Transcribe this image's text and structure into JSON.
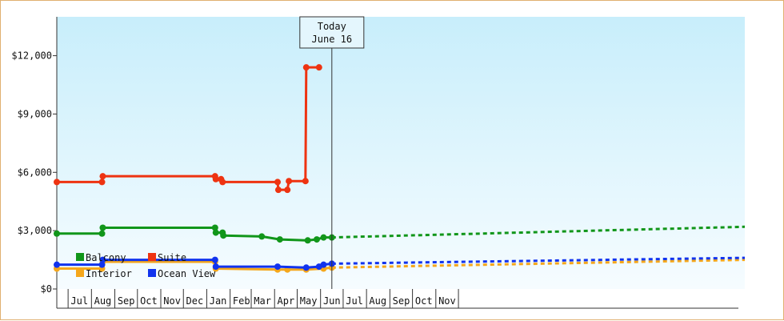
{
  "chart_data": {
    "type": "line",
    "title": "",
    "xlabel": "",
    "ylabel": "",
    "y_ticks": [
      0,
      3000,
      6000,
      9000,
      12000
    ],
    "y_tick_labels": [
      "$0",
      "$3,000",
      "$6,000",
      "$9,000",
      "$12,000"
    ],
    "ylim": [
      0,
      14000
    ],
    "x_start": "2016-06-16",
    "x_end": "2018-12-16",
    "month_labels": [
      "Jul",
      "Aug",
      "Sep",
      "Oct",
      "Nov",
      "Dec",
      "Jan",
      "Feb",
      "Mar",
      "Apr",
      "May",
      "Jun",
      "Jul",
      "Aug",
      "Sep",
      "Oct",
      "Nov"
    ],
    "month_label_dates": [
      "2016-07-16",
      "2016-08-16",
      "2016-09-16",
      "2016-10-16",
      "2016-11-16",
      "2016-12-16",
      "2017-01-16",
      "2017-02-16",
      "2017-03-16",
      "2017-04-16",
      "2017-05-16",
      "2017-06-16",
      "2017-07-16",
      "2017-08-16",
      "2017-09-16",
      "2017-10-16",
      "2017-11-16"
    ],
    "today": {
      "line1": "Today",
      "line2": "June 16",
      "date": "2017-06-16"
    },
    "grid": false,
    "legend_position": "bottom-left",
    "series": [
      {
        "name": "Balcony",
        "color": "#11961a",
        "points": [
          [
            "2016-06-16",
            2850
          ],
          [
            "2016-08-15",
            2850
          ],
          [
            "2016-08-16",
            3150
          ],
          [
            "2017-01-12",
            3150
          ],
          [
            "2017-01-13",
            2900
          ],
          [
            "2017-01-22",
            2900
          ],
          [
            "2017-01-23",
            2750
          ],
          [
            "2017-03-15",
            2700
          ],
          [
            "2017-04-08",
            2550
          ],
          [
            "2017-05-15",
            2500
          ],
          [
            "2017-05-27",
            2550
          ],
          [
            "2017-06-05",
            2650
          ],
          [
            "2017-06-16",
            2650
          ]
        ],
        "forecast": [
          [
            "2017-06-16",
            2650
          ],
          [
            "2018-12-16",
            3200
          ]
        ]
      },
      {
        "name": "Suite",
        "color": "#ee3311",
        "points": [
          [
            "2016-06-16",
            5500
          ],
          [
            "2016-08-15",
            5500
          ],
          [
            "2016-08-16",
            5800
          ],
          [
            "2017-01-12",
            5800
          ],
          [
            "2017-01-13",
            5650
          ],
          [
            "2017-01-20",
            5650
          ],
          [
            "2017-01-22",
            5500
          ],
          [
            "2017-04-05",
            5500
          ],
          [
            "2017-04-06",
            5100
          ],
          [
            "2017-04-18",
            5100
          ],
          [
            "2017-04-20",
            5550
          ],
          [
            "2017-05-12",
            5550
          ],
          [
            "2017-05-13",
            11400
          ],
          [
            "2017-05-30",
            11400
          ]
        ],
        "forecast": []
      },
      {
        "name": "Interior",
        "color": "#f5a71b",
        "points": [
          [
            "2016-06-16",
            1050
          ],
          [
            "2016-08-15",
            1050
          ],
          [
            "2016-08-16",
            1400
          ],
          [
            "2017-01-12",
            1400
          ],
          [
            "2017-01-13",
            1050
          ],
          [
            "2017-04-05",
            1000
          ],
          [
            "2017-04-18",
            1000
          ],
          [
            "2017-05-13",
            1000
          ],
          [
            "2017-06-05",
            1050
          ],
          [
            "2017-06-16",
            1100
          ]
        ],
        "forecast": [
          [
            "2017-06-16",
            1100
          ],
          [
            "2018-12-16",
            1500
          ]
        ]
      },
      {
        "name": "Ocean View",
        "color": "#1133ee",
        "points": [
          [
            "2016-06-16",
            1250
          ],
          [
            "2016-08-15",
            1250
          ],
          [
            "2016-08-16",
            1500
          ],
          [
            "2017-01-12",
            1500
          ],
          [
            "2017-01-13",
            1150
          ],
          [
            "2017-04-05",
            1150
          ],
          [
            "2017-05-13",
            1100
          ],
          [
            "2017-05-30",
            1150
          ],
          [
            "2017-06-05",
            1250
          ],
          [
            "2017-06-16",
            1300
          ]
        ],
        "forecast": [
          [
            "2017-06-16",
            1300
          ],
          [
            "2018-12-16",
            1600
          ]
        ]
      }
    ]
  }
}
